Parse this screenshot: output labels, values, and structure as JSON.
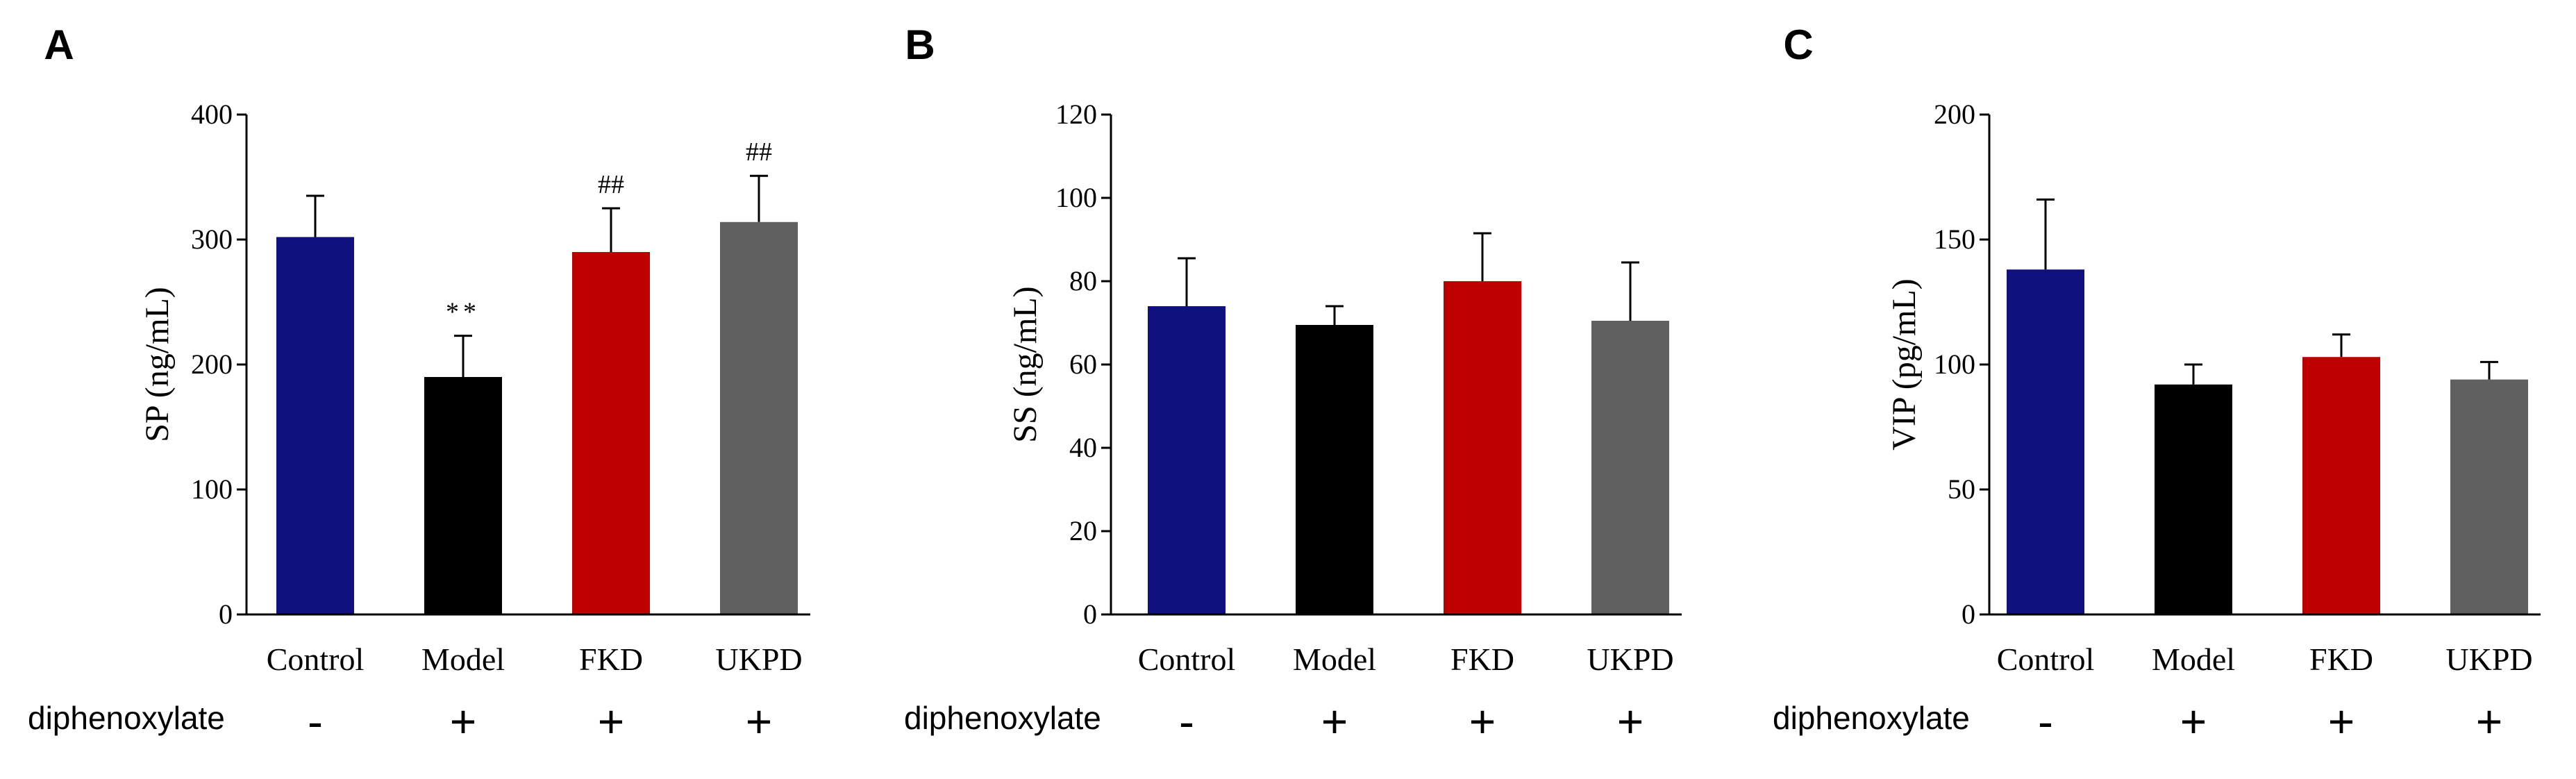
{
  "treatment_label": "diphenoxylate",
  "treatment_signs": [
    "-",
    "+",
    "+",
    "+"
  ],
  "colors": {
    "Control": "#10107f",
    "Model": "#000000",
    "FKD": "#be0000",
    "UKPD": "#606060"
  },
  "chart_data": [
    {
      "panel": "A",
      "type": "bar",
      "ylabel": "SP (ng/mL)",
      "ylim": [
        0,
        400
      ],
      "yticks": [
        0,
        100,
        200,
        300,
        400
      ],
      "categories": [
        "Control",
        "Model",
        "FKD",
        "UKPD"
      ],
      "values": [
        302,
        190,
        290,
        314
      ],
      "errors": [
        33,
        33,
        35,
        37
      ],
      "significance": [
        "",
        "**",
        "##",
        "##"
      ]
    },
    {
      "panel": "B",
      "type": "bar",
      "ylabel": "SS (ng/mL)",
      "ylim": [
        0,
        120
      ],
      "yticks": [
        0,
        20,
        40,
        60,
        80,
        100,
        120
      ],
      "categories": [
        "Control",
        "Model",
        "FKD",
        "UKPD"
      ],
      "values": [
        74,
        69.5,
        80,
        70.5
      ],
      "errors": [
        11.5,
        4.5,
        11.5,
        14
      ],
      "significance": [
        "",
        "",
        "",
        ""
      ]
    },
    {
      "panel": "C",
      "type": "bar",
      "ylabel": "VIP (pg/mL)",
      "ylim": [
        0,
        200
      ],
      "yticks": [
        0,
        50,
        100,
        150,
        200
      ],
      "categories": [
        "Control",
        "Model",
        "FKD",
        "UKPD"
      ],
      "values": [
        138,
        92,
        103,
        94
      ],
      "errors": [
        28,
        8,
        9,
        7
      ],
      "significance": [
        "",
        "",
        "",
        ""
      ]
    }
  ]
}
